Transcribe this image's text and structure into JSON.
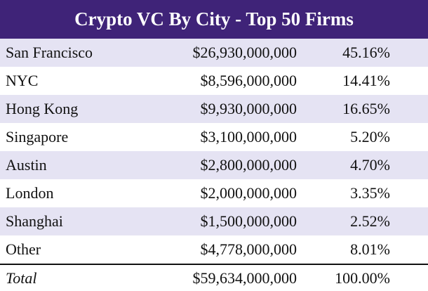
{
  "header": {
    "title": "Crypto VC By City - Top 50 Firms"
  },
  "table": {
    "rows": [
      [
        "San Francisco",
        "$26,930,000,000",
        "45.16%"
      ],
      [
        "NYC",
        "$8,596,000,000",
        "14.41%"
      ],
      [
        "Hong Kong",
        "$9,930,000,000",
        "16.65%"
      ],
      [
        "Singapore",
        "$3,100,000,000",
        "5.20%"
      ],
      [
        "Austin",
        "$2,800,000,000",
        "4.70%"
      ],
      [
        "London",
        "$2,000,000,000",
        "3.35%"
      ],
      [
        "Shanghai",
        "$1,500,000,000",
        "2.52%"
      ],
      [
        "Other",
        "$4,778,000,000",
        "8.01%"
      ]
    ],
    "total": [
      "Total",
      "$59,634,000,000",
      "100.00%"
    ]
  }
}
